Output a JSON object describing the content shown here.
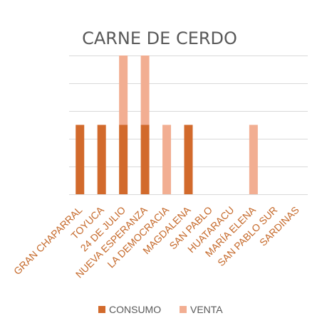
{
  "chart_data": {
    "type": "bar",
    "stacked": true,
    "title": "CARNE DE CERDO",
    "categories": [
      "GRAN CHAPARRAL",
      "TOYUCA",
      "24 DE JULIO",
      "NUEVA ESPERANZA",
      "LA DEMOCRACIA",
      "MAGDALENA",
      "SAN PABLO",
      "HUATARACU",
      "MARÍA ELENA",
      "SAN PABLO SUR",
      "SARDINAS"
    ],
    "series": [
      {
        "name": "CONSUMO",
        "values": [
          1,
          1,
          1,
          1,
          0,
          1,
          0,
          0,
          0,
          0,
          0
        ],
        "color": "#d26a2c"
      },
      {
        "name": "VENTA",
        "values": [
          0,
          0,
          1,
          1,
          1,
          0,
          0,
          0,
          1,
          0,
          0
        ],
        "color": "#f2ae92"
      }
    ],
    "ylim": [
      0,
      2
    ],
    "grid": true,
    "legend_position": "bottom",
    "tick_label_color": "#c5692a",
    "grid_color": "#d9d9d9"
  }
}
